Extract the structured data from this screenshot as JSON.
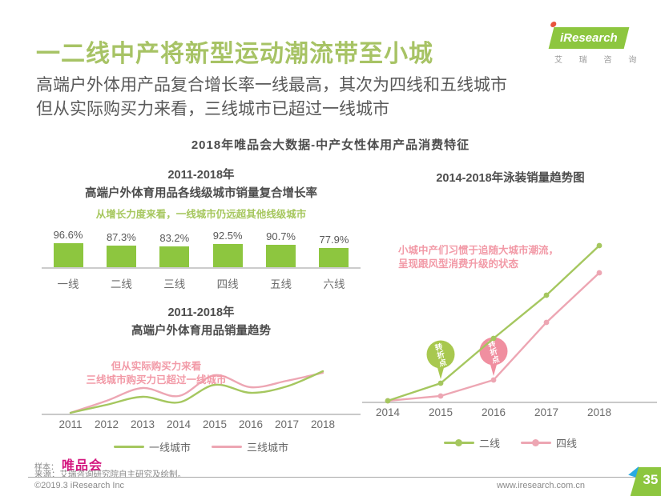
{
  "page": {
    "title": "一二线中产将新型运动潮流带至小城",
    "subtitle_line1": "高端户外体用产品复合增长率一线最高，其次为四线和五线城市",
    "subtitle_line2": "但从实际购买力来看，三线城市已超过一线城市",
    "section_heading": "2018年唯品会大数据-中产女性体用产品消费特征",
    "sample_label": "样本：",
    "sample_value": "唯品会",
    "source_note": "来源：艾瑞咨询研究院自主研究及绘制。",
    "copyright": "©2019.3 iResearch Inc",
    "website": "www.iresearch.com.cn",
    "page_number": "35"
  },
  "logo": {
    "brand": "iResearch",
    "brand_cn": "艾 瑞 咨 询"
  },
  "colors": {
    "title_green": "#a7c365",
    "bar_green": "#8dc63f",
    "line_green": "#a5c75f",
    "line_pink": "#eda6b3",
    "badge_green": "#a8c84f",
    "badge_pink": "#f08fa0",
    "annotation_pink": "#f29aa7",
    "magenta": "#d4177f",
    "axis_gray": "#c9c9c9"
  },
  "chart_data": [
    {
      "id": "bar_cagr",
      "type": "bar",
      "title_line1": "2011-2018年",
      "title_line2": "高端户外体育用品各线级城市销量复合增长率",
      "annotation": "从增长力度来看，一线城市仍远超其他线级城市",
      "categories": [
        "一线",
        "二线",
        "三线",
        "四线",
        "五线",
        "六线"
      ],
      "values": [
        96.6,
        87.3,
        83.2,
        92.5,
        90.7,
        77.9
      ],
      "value_labels": [
        "96.6%",
        "87.3%",
        "83.2%",
        "92.5%",
        "90.7%",
        "77.9%"
      ],
      "ylabel": "销量复合增长率",
      "ylim": [
        0,
        100
      ],
      "grid": false,
      "bar_color": "#8dc63f"
    },
    {
      "id": "line_outdoor",
      "type": "line",
      "title_line1": "2011-2018年",
      "title_line2": "高端户外体育用品销量趋势",
      "annotation_line1": "但从实际购买力来看",
      "annotation_line2": "三线城市购买力已超过一线城市",
      "x": [
        "2011",
        "2012",
        "2013",
        "2014",
        "2015",
        "2016",
        "2017",
        "2018"
      ],
      "series": [
        {
          "name": "三线城市",
          "color": "#eda6b3",
          "values": [
            2,
            17,
            33,
            23,
            49,
            34,
            42,
            52
          ]
        },
        {
          "name": "一线城市",
          "color": "#a5c75f",
          "values": [
            2,
            12,
            22,
            15,
            37,
            27,
            35,
            54
          ]
        }
      ],
      "ylim": [
        0,
        60
      ],
      "smooth": true,
      "markers": false,
      "grid": false,
      "legend_position": "bottom",
      "legend_order": [
        "一线城市",
        "三线城市"
      ]
    },
    {
      "id": "line_swimwear",
      "type": "line",
      "title": "2014-2018年泳装销量趋势图",
      "annotation_line1": "小城中产们习惯于追随大城市潮流，",
      "annotation_line2": "呈现跟风型消费升级的状态",
      "x": [
        "2014",
        "2015",
        "2016",
        "2017",
        "2018"
      ],
      "series": [
        {
          "name": "四线",
          "color": "#eda6b3",
          "values": [
            1,
            4,
            14,
            50,
            81
          ],
          "turning_point_x": "2016",
          "badge_label": "转折点",
          "badge_fill": "#f08fa0"
        },
        {
          "name": "二线",
          "color": "#a5c75f",
          "values": [
            1,
            12,
            40,
            67,
            98
          ],
          "turning_point_x": "2015",
          "badge_label": "转折点",
          "badge_fill": "#a8c84f"
        }
      ],
      "ylim": [
        0,
        100
      ],
      "smooth": false,
      "markers": true,
      "grid": false,
      "legend_position": "bottom",
      "legend_order": [
        "二线",
        "四线"
      ]
    }
  ]
}
